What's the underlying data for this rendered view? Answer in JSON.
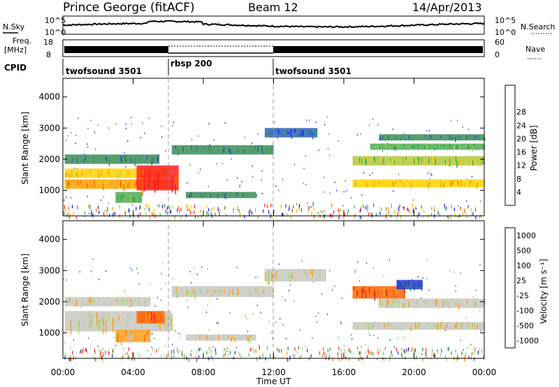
{
  "header": {
    "station": "Prince George (fitACF)",
    "beam": "Beam 12",
    "date": "14/Apr/2013"
  },
  "noise_panel": {
    "left_label": "N.Sky",
    "right_label": "N.Search",
    "left_ticks": [
      "10^5",
      "10^0"
    ],
    "right_ticks": [
      "10^5",
      "10^0"
    ]
  },
  "freq_panel": {
    "left_label_1": "Freq.",
    "left_label_2": "[MHz]",
    "left_ticks": [
      "18",
      "8"
    ],
    "right_ticks": [
      "60",
      "0"
    ],
    "right_label": "Nave"
  },
  "cpid": {
    "label": "CPID",
    "segments": [
      {
        "name": "twofsound 3501",
        "start_h": 0,
        "end_h": 6
      },
      {
        "name": "rbsp 200",
        "start_h": 6,
        "end_h": 12
      },
      {
        "name": "twofsound 3501",
        "start_h": 12,
        "end_h": 24
      }
    ]
  },
  "x_axis": {
    "label": "Time UT",
    "ticks": [
      "00:00",
      "04:00",
      "08:00",
      "12:00",
      "16:00",
      "20:00",
      "00:00"
    ]
  },
  "chart_data": [
    {
      "type": "heatmap",
      "quantity": "power",
      "ylabel": "Slant Range [km]",
      "yticks": [
        1000,
        2000,
        3000,
        4000
      ],
      "ylim": [
        180,
        4600
      ],
      "xlim_hours": [
        0,
        24
      ],
      "colorbar": {
        "label": "Power [dB]",
        "ticks": [
          "4",
          "8",
          "12",
          "16",
          "20",
          "24",
          "28"
        ],
        "colors": [
          "#1a1aff",
          "#2a64b4",
          "#3c8c5a",
          "#4caf50",
          "#b4c83c",
          "#ffd200",
          "#ffa000",
          "#ff6400",
          "#ff1e1e"
        ]
      },
      "bands": [
        {
          "t0": 0.1,
          "t1": 6.2,
          "r0": 1050,
          "r1": 1350,
          "level": 6
        },
        {
          "t0": 0.1,
          "t1": 6.0,
          "r0": 1400,
          "r1": 1700,
          "level": 5
        },
        {
          "t0": 0.1,
          "t1": 5.5,
          "r0": 1850,
          "r1": 2150,
          "level": 2
        },
        {
          "t0": 4.2,
          "t1": 6.6,
          "r0": 1000,
          "r1": 1800,
          "level": 8
        },
        {
          "t0": 3.0,
          "t1": 4.5,
          "r0": 600,
          "r1": 950,
          "level": 3
        },
        {
          "t0": 6.2,
          "t1": 12.0,
          "r0": 2150,
          "r1": 2450,
          "level": 2
        },
        {
          "t0": 7.0,
          "t1": 11.0,
          "r0": 750,
          "r1": 950,
          "level": 2
        },
        {
          "t0": 11.5,
          "t1": 14.5,
          "r0": 2700,
          "r1": 3000,
          "level": 1
        },
        {
          "t0": 16.5,
          "t1": 24.0,
          "r0": 1800,
          "r1": 2100,
          "level": 4
        },
        {
          "t0": 16.5,
          "t1": 24.0,
          "r0": 1100,
          "r1": 1350,
          "level": 5
        },
        {
          "t0": 17.5,
          "t1": 24.0,
          "r0": 2300,
          "r1": 2500,
          "level": 3
        },
        {
          "t0": 18.0,
          "t1": 24.0,
          "r0": 2600,
          "r1": 2800,
          "level": 2
        }
      ]
    },
    {
      "type": "heatmap",
      "quantity": "velocity",
      "ylabel": "Slant Range [km]",
      "yticks": [
        1000,
        2000,
        3000,
        4000
      ],
      "ylim": [
        180,
        4600
      ],
      "xlim_hours": [
        0,
        24
      ],
      "colorbar": {
        "label": "Velocity [m s⁻¹]",
        "ticks": [
          "1000",
          "500",
          "100",
          "25",
          "-25",
          "-100",
          "-500",
          "-1000"
        ],
        "colors": [
          "#1e3cc8",
          "#2a8c4a",
          "#6cc040",
          "#a8d878",
          "#c8c8c0",
          "#ffa020",
          "#ff6400",
          "#ff1e1e"
        ]
      },
      "bands": [
        {
          "t0": 0.1,
          "t1": 6.2,
          "r0": 1050,
          "r1": 1700,
          "level": 4
        },
        {
          "t0": 0.1,
          "t1": 5.0,
          "r0": 1850,
          "r1": 2150,
          "level": 4
        },
        {
          "t0": 3.0,
          "t1": 5.0,
          "r0": 700,
          "r1": 1100,
          "level": 5
        },
        {
          "t0": 4.2,
          "t1": 5.8,
          "r0": 1300,
          "r1": 1700,
          "level": 6
        },
        {
          "t0": 6.2,
          "t1": 12.0,
          "r0": 2150,
          "r1": 2500,
          "level": 4
        },
        {
          "t0": 7.0,
          "t1": 11.0,
          "r0": 750,
          "r1": 950,
          "level": 4
        },
        {
          "t0": 11.5,
          "t1": 15.0,
          "r0": 2650,
          "r1": 3050,
          "level": 4
        },
        {
          "t0": 16.5,
          "t1": 19.5,
          "r0": 2100,
          "r1": 2500,
          "level": 6
        },
        {
          "t0": 19.0,
          "t1": 20.5,
          "r0": 2400,
          "r1": 2700,
          "level": 0
        },
        {
          "t0": 16.5,
          "t1": 24.0,
          "r0": 1100,
          "r1": 1350,
          "level": 4
        },
        {
          "t0": 18.0,
          "t1": 24.0,
          "r0": 1800,
          "r1": 2100,
          "level": 4
        }
      ]
    }
  ]
}
